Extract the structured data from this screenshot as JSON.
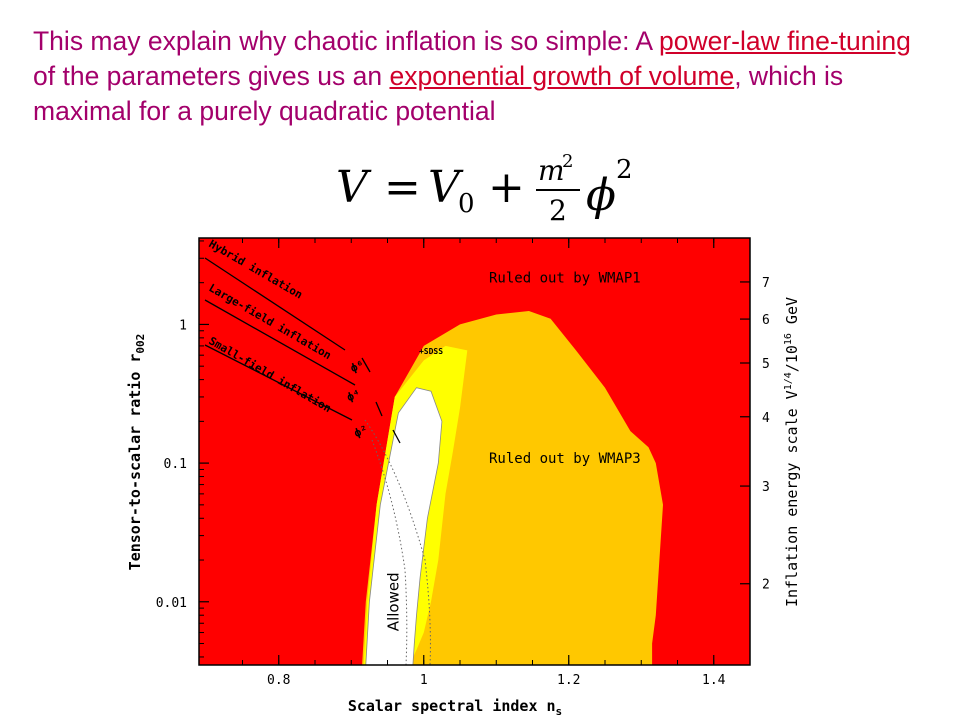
{
  "slide": {
    "text_1": "This may explain why chaotic inflation is so simple: A ",
    "link_1": "power-law fine-tuning",
    "text_2": " of the parameters gives us an ",
    "link_2": "exponential growth of volume",
    "text_3": ", which is maximal for a purely quadratic potential"
  },
  "formula": {
    "lhs": "V",
    "equals": "=",
    "v0": "V",
    "v0_sub": "0",
    "plus": "+",
    "numerator": "m",
    "numerator_exp": "2",
    "denominator": "2",
    "phi": "ϕ",
    "phi_exp": "2"
  },
  "chart_data": {
    "type": "area",
    "xlabel": "Scalar spectral index n",
    "xlabel_sub": "s",
    "ylabel": "Tensor-to-scalar ratio r",
    "ylabel_sub": "002",
    "y2label": "Inflation energy scale V",
    "y2label_sup": "1/4",
    "y2label_mid": "/10",
    "y2label_sup2": "16",
    "y2label_unit": " GeV",
    "xlim": [
      0.69,
      1.45
    ],
    "ylim": [
      0.0035,
      4.2
    ],
    "yscale": "log",
    "xticks": [
      0.8,
      1,
      1.2,
      1.4
    ],
    "xtick_labels": [
      "0.8",
      "1",
      "1.2",
      "1.4"
    ],
    "yticks": [
      0.01,
      0.1,
      1
    ],
    "ytick_labels": [
      "0.01",
      "0.1",
      "1"
    ],
    "y2ticks": [
      2,
      3,
      4,
      5,
      6,
      7
    ],
    "y2tick_labels": [
      "2",
      "3",
      "4",
      "5",
      "6",
      "7"
    ],
    "regions": [
      {
        "name": "Ruled out by WMAP1",
        "color": "#ff0000",
        "fill": "background"
      },
      {
        "name": "Ruled out by WMAP3",
        "color": "#ffc800",
        "x": [
          0.915,
          0.92,
          0.935,
          0.96,
          1.0,
          1.05,
          1.1,
          1.145,
          1.175,
          1.21,
          1.25,
          1.285,
          1.31,
          1.32,
          1.33,
          1.325,
          1.32,
          1.315,
          1.315
        ],
        "y": [
          0.0035,
          0.01,
          0.05,
          0.3,
          0.7,
          1.0,
          1.18,
          1.25,
          1.1,
          0.65,
          0.35,
          0.17,
          0.13,
          0.1,
          0.05,
          0.02,
          0.008,
          0.005,
          0.0035
        ]
      },
      {
        "name": "+SDSS",
        "color": "#ffff00",
        "x": [
          0.917,
          0.922,
          0.935,
          0.96,
          1.0,
          1.03,
          1.06,
          1.055,
          1.05,
          1.04,
          1.03,
          1.02,
          1.01,
          1.0,
          0.99,
          0.98
        ],
        "y": [
          0.0035,
          0.01,
          0.05,
          0.3,
          0.55,
          0.7,
          0.65,
          0.4,
          0.25,
          0.12,
          0.06,
          0.02,
          0.01,
          0.006,
          0.0045,
          0.0035
        ]
      },
      {
        "name": "Allowed",
        "color": "#ffffff",
        "x": [
          0.92,
          0.925,
          0.94,
          0.965,
          0.99,
          1.01,
          1.025,
          1.02,
          1.005,
          0.995,
          0.99,
          0.987,
          0.985
        ],
        "y": [
          0.0035,
          0.01,
          0.05,
          0.23,
          0.35,
          0.33,
          0.2,
          0.1,
          0.04,
          0.015,
          0.008,
          0.005,
          0.0035
        ]
      }
    ],
    "lines": [
      {
        "name": "Hybrid inflation"
      },
      {
        "name": "Large-field inflation"
      },
      {
        "name": "Small-field inflation"
      }
    ],
    "annotations": [
      {
        "text": "Ruled out by WMAP1",
        "x": 1.09,
        "y": 2.0
      },
      {
        "text": "Ruled out by WMAP3",
        "x": 1.09,
        "y": 0.1
      },
      {
        "text": "+SDSS",
        "x": 1.01,
        "y": 0.61
      },
      {
        "text": "Allowed",
        "x": 0.965,
        "y": 0.01
      },
      {
        "text": "ϕ⁶",
        "x": 0.91,
        "y": 0.47
      },
      {
        "text": "ϕ⁴",
        "x": 0.905,
        "y": 0.29
      },
      {
        "text": "ϕ²",
        "x": 0.915,
        "y": 0.16
      }
    ]
  }
}
